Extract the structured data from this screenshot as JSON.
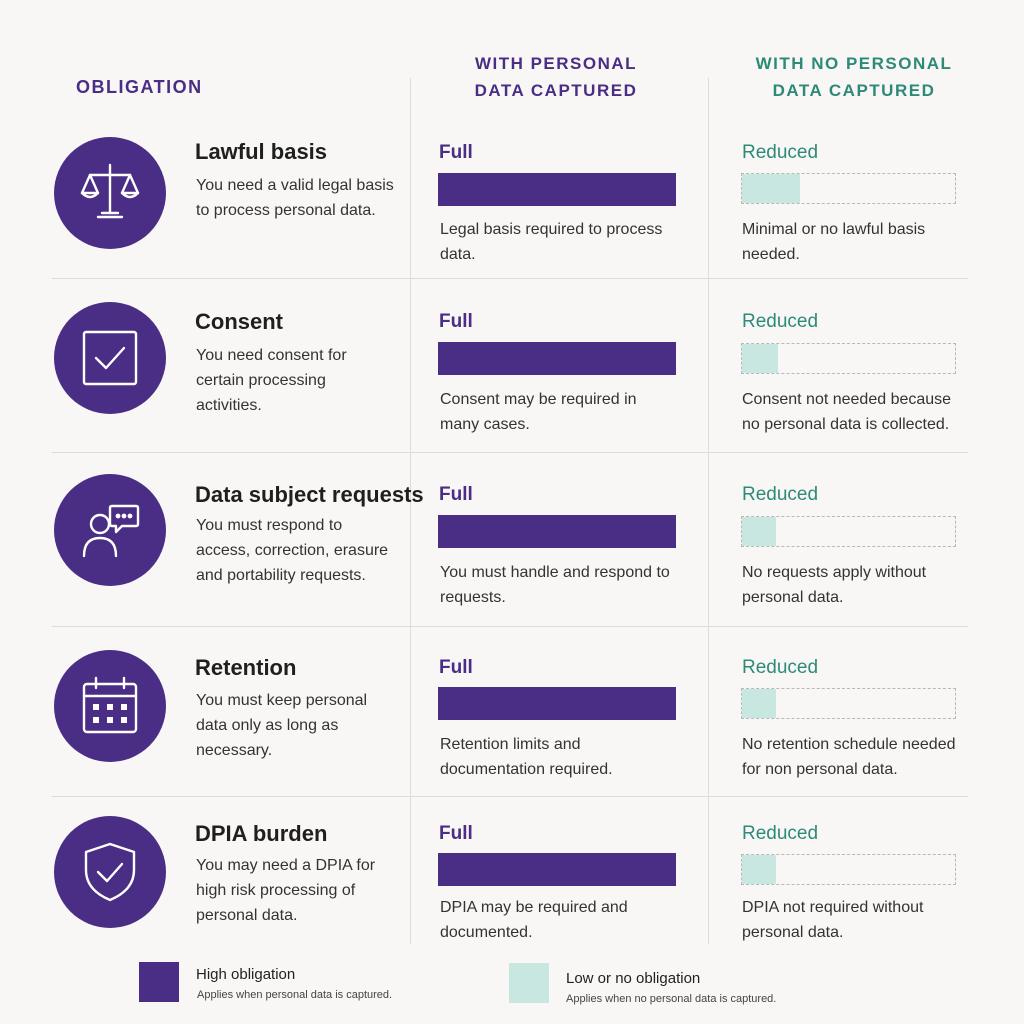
{
  "headers": {
    "obligation": "OBLIGATION",
    "with_line1": "WITH PERSONAL",
    "with_line2": "DATA CAPTURED",
    "without_line1": "WITH NO PERSONAL",
    "without_line2": "DATA CAPTURED"
  },
  "colors": {
    "high": "#4a2d85",
    "low": "#c7e7e0",
    "teal_text": "#2e8a78"
  },
  "rows": [
    {
      "icon": "scales-icon",
      "title": "Lawful basis",
      "desc": "You need a valid legal basis to process personal data.",
      "with": {
        "level": "Full",
        "fill": 1.0,
        "desc": "Legal basis required to process data."
      },
      "without": {
        "level": "Reduced",
        "fill": 0.27,
        "desc": "Minimal or no lawful basis needed."
      }
    },
    {
      "icon": "checkbox-icon",
      "title": "Consent",
      "desc": "You need consent for certain processing activities.",
      "with": {
        "level": "Full",
        "fill": 1.0,
        "desc": "Consent may be required in many cases."
      },
      "without": {
        "level": "Reduced",
        "fill": 0.17,
        "desc": "Consent not needed because no personal data is collected."
      }
    },
    {
      "icon": "person-speech-icon",
      "title": "Data subject requests",
      "desc": "You must respond to access, correction, erasure and portability requests.",
      "with": {
        "level": "Full",
        "fill": 1.0,
        "desc": "You must handle and respond to requests."
      },
      "without": {
        "level": "Reduced",
        "fill": 0.16,
        "desc": "No requests apply without personal data."
      }
    },
    {
      "icon": "calendar-icon",
      "title": "Retention",
      "desc": "You must keep personal data only as long as necessary.",
      "with": {
        "level": "Full",
        "fill": 1.0,
        "desc": "Retention limits and documentation required."
      },
      "without": {
        "level": "Reduced",
        "fill": 0.16,
        "desc": "No retention schedule needed for non personal data."
      }
    },
    {
      "icon": "shield-check-icon",
      "title": "DPIA burden",
      "desc": "You may need a DPIA for high risk processing of personal data.",
      "with": {
        "level": "Full",
        "fill": 1.0,
        "desc": "DPIA may be required and documented."
      },
      "without": {
        "level": "Reduced",
        "fill": 0.16,
        "desc": "DPIA not required without personal data."
      }
    }
  ],
  "legend": {
    "high_title": "High obligation",
    "high_sub": "Applies when personal data is captured.",
    "low_title": "Low or no obligation",
    "low_sub": "Applies when no personal data is captured."
  }
}
